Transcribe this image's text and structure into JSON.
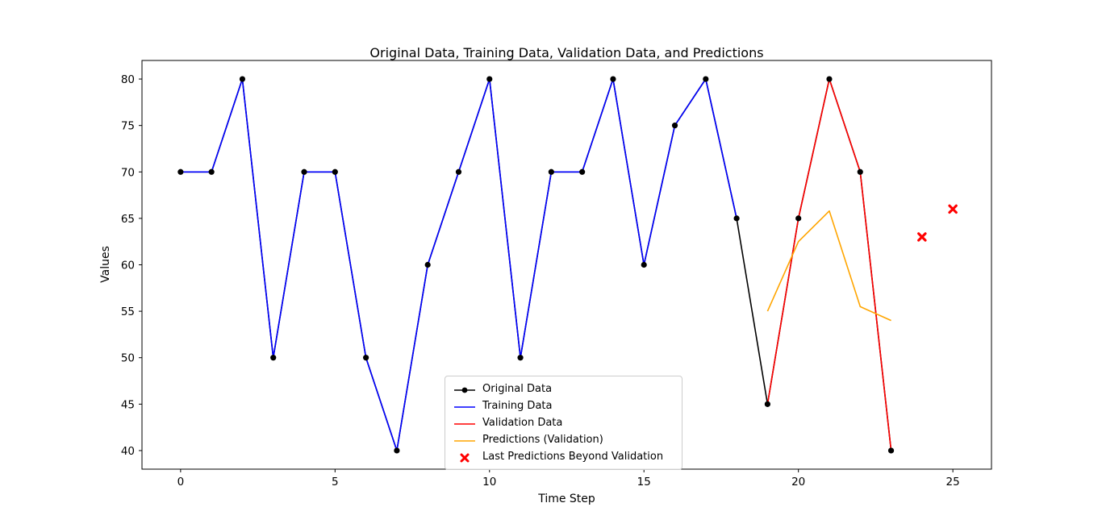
{
  "figure": {
    "background": "#ffffff"
  },
  "chart_data": {
    "type": "line",
    "title": "Original Data, Training Data, Validation Data, and Predictions",
    "xlabel": "Time Step",
    "ylabel": "Values",
    "xlim": [
      -1.25,
      26.25
    ],
    "ylim": [
      38,
      82
    ],
    "xticks": [
      0,
      5,
      10,
      15,
      20,
      25
    ],
    "yticks": [
      40,
      45,
      50,
      55,
      60,
      65,
      70,
      75,
      80
    ],
    "grid": false,
    "legend_position": "inside axes, lower center-left",
    "series": [
      {
        "name": "Original Data",
        "type": "line",
        "color": "#000000",
        "marker": "circle",
        "legend": "line-dot",
        "x": [
          0,
          1,
          2,
          3,
          4,
          5,
          6,
          7,
          8,
          9,
          10,
          11,
          12,
          13,
          14,
          15,
          16,
          17,
          18,
          19,
          20,
          21,
          22,
          23
        ],
        "y": [
          70,
          70,
          80,
          50,
          70,
          70,
          50,
          40,
          60,
          70,
          80,
          50,
          70,
          70,
          80,
          60,
          75,
          80,
          65,
          45,
          65,
          80,
          70,
          40
        ]
      },
      {
        "name": "Training Data",
        "type": "line",
        "color": "#0000ff",
        "marker": "none",
        "legend": "line",
        "x": [
          0,
          1,
          2,
          3,
          4,
          5,
          6,
          7,
          8,
          9,
          10,
          11,
          12,
          13,
          14,
          15,
          16,
          17,
          18
        ],
        "y": [
          70,
          70,
          80,
          50,
          70,
          70,
          50,
          40,
          60,
          70,
          80,
          50,
          70,
          70,
          80,
          60,
          75,
          80,
          65
        ]
      },
      {
        "name": "Validation Data",
        "type": "line",
        "color": "#ff0000",
        "marker": "none",
        "legend": "line",
        "x": [
          19,
          20,
          21,
          22,
          23
        ],
        "y": [
          45,
          65,
          80,
          70,
          40
        ]
      },
      {
        "name": "Predictions (Validation)",
        "type": "line",
        "color": "#ffa500",
        "marker": "none",
        "legend": "line",
        "x": [
          19,
          20,
          21,
          22,
          23
        ],
        "y": [
          55,
          62.5,
          65.8,
          55.5,
          54
        ]
      },
      {
        "name": "Last Predictions Beyond Validation",
        "type": "scatter",
        "color": "#ff0000",
        "marker": "X",
        "legend": "cross",
        "x": [
          24,
          25
        ],
        "y": [
          63,
          66
        ]
      }
    ]
  }
}
